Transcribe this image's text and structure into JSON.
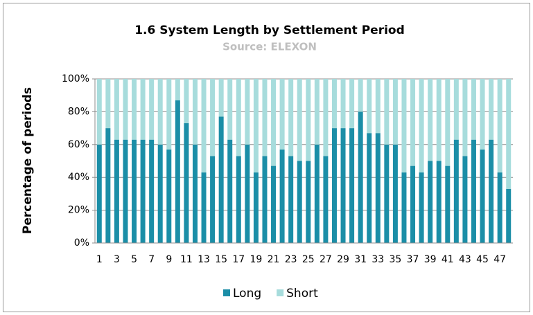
{
  "chart_data": {
    "type": "stacked_bar",
    "title": "1.6 System Length by Settlement Period",
    "subtitle": "Source: ELEXON",
    "y_label": "Percentage of periods",
    "categories": [
      "1",
      null,
      "3",
      null,
      "5",
      null,
      "7",
      null,
      "9",
      null,
      "11",
      null,
      "13",
      null,
      "15",
      null,
      "17",
      null,
      "19",
      null,
      "21",
      null,
      "23",
      null,
      "25",
      null,
      "27",
      null,
      "29",
      null,
      "31",
      null,
      "33",
      null,
      "35",
      null,
      "37",
      null,
      "39",
      null,
      "41",
      null,
      "43",
      null,
      "45",
      null,
      "47",
      null
    ],
    "series": [
      {
        "name": "Long",
        "color": "#1b8ea7",
        "values": [
          60,
          70,
          63,
          63,
          63,
          63,
          63,
          60,
          57,
          87,
          73,
          60,
          43,
          53,
          77,
          63,
          53,
          60,
          43,
          53,
          47,
          57,
          53,
          50,
          50,
          60,
          53,
          70,
          70,
          70,
          80,
          67,
          67,
          60,
          60,
          43,
          47,
          43,
          50,
          50,
          47,
          63,
          53,
          63,
          57,
          63,
          43,
          33
        ]
      },
      {
        "name": "Short",
        "color": "#a7dcdc",
        "values": [
          40,
          30,
          37,
          37,
          37,
          37,
          37,
          40,
          43,
          13,
          27,
          40,
          57,
          47,
          23,
          37,
          47,
          40,
          57,
          47,
          53,
          43,
          47,
          50,
          50,
          40,
          47,
          30,
          30,
          30,
          20,
          33,
          33,
          40,
          40,
          57,
          53,
          57,
          50,
          50,
          53,
          37,
          47,
          37,
          43,
          37,
          57,
          67
        ]
      }
    ],
    "ylim": [
      0,
      100
    ],
    "yticks": [
      {
        "value": 0,
        "label": "0%"
      },
      {
        "value": 20,
        "label": "20%"
      },
      {
        "value": 40,
        "label": "40%"
      },
      {
        "value": 60,
        "label": "60%"
      },
      {
        "value": 80,
        "label": "80%"
      },
      {
        "value": 100,
        "label": "100%"
      }
    ],
    "grid": true,
    "legend": "bottom"
  }
}
